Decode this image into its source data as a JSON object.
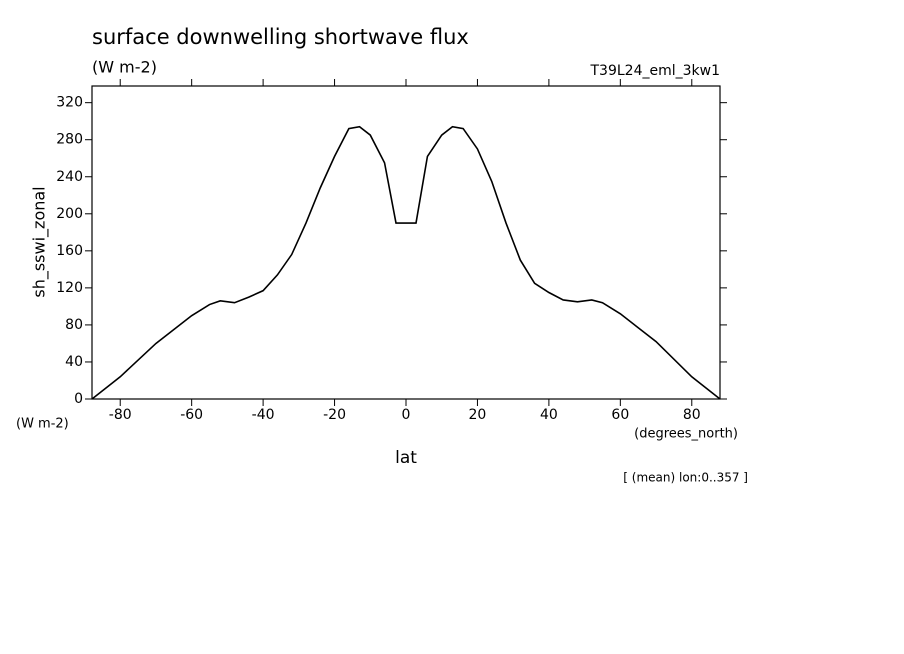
{
  "chart_data": {
    "type": "line",
    "title": "surface downwelling shortwave flux",
    "subtitle": "(W m-2)",
    "dataset": "T39L24_eml_3kw1",
    "y_label": "sh_sswi_zonal",
    "y_units": "(W m-2)",
    "x_label": "lat",
    "x_units": "(degrees_north)",
    "note": "[ (mean) lon:0..357 ]",
    "x": [
      -87.9,
      -80,
      -70,
      -60,
      -55,
      -52,
      -48,
      -44,
      -40,
      -36,
      -32,
      -28,
      -24,
      -20,
      -16,
      -13,
      -10,
      -6,
      -2.8,
      2.8,
      6,
      10,
      13,
      16,
      20,
      24,
      28,
      32,
      36,
      40,
      44,
      48,
      52,
      55,
      60,
      70,
      80,
      87.9
    ],
    "series": [
      {
        "name": "sh_sswi_zonal",
        "color": "#000000",
        "values": [
          0,
          24,
          60,
          90,
          102,
          106,
          104,
          110,
          117,
          134,
          156,
          190,
          228,
          262,
          292,
          294,
          285,
          255,
          190,
          190,
          262,
          285,
          294,
          292,
          270,
          235,
          190,
          150,
          125,
          115,
          107,
          105,
          107,
          104,
          92,
          62,
          24,
          0
        ]
      }
    ],
    "xlim": [
      -87.9,
      87.9
    ],
    "xticks": [
      -80,
      -60,
      -40,
      -20,
      0,
      20,
      40,
      60,
      80
    ],
    "ylim": [
      0,
      338
    ],
    "yticks": [
      0,
      40,
      80,
      120,
      160,
      200,
      240,
      280,
      320
    ]
  }
}
